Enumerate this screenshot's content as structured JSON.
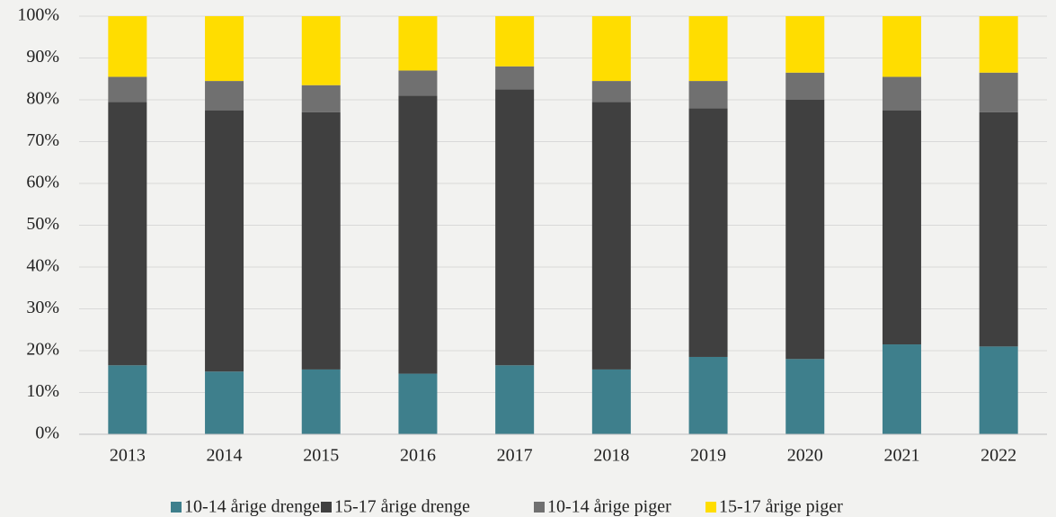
{
  "chart_data": {
    "type": "stacked_bar",
    "categories": [
      "2013",
      "2014",
      "2015",
      "2016",
      "2017",
      "2018",
      "2019",
      "2020",
      "2021",
      "2022"
    ],
    "series": [
      {
        "name": "10-14 årige drenge",
        "color": "#3e7f8c",
        "values": [
          16.5,
          15,
          15.5,
          14.5,
          16.5,
          15.5,
          18.5,
          18,
          21.5,
          21
        ]
      },
      {
        "name": "15-17 årige drenge",
        "color": "#404040",
        "values": [
          63,
          62.5,
          61.5,
          66.5,
          66,
          64,
          59.5,
          62,
          56,
          56
        ]
      },
      {
        "name": "10-14 årige piger",
        "color": "#707070",
        "values": [
          6,
          7,
          6.5,
          6,
          5.5,
          5,
          6.5,
          6.5,
          8,
          9.5
        ]
      },
      {
        "name": "15-17 årige piger",
        "color": "#ffdd00",
        "values": [
          14.5,
          15.5,
          16.5,
          13,
          12,
          15.5,
          15.5,
          13.5,
          14.5,
          13.5
        ]
      }
    ],
    "ylim": [
      0,
      100
    ],
    "yticks": [
      {
        "value": 0,
        "label": "0%"
      },
      {
        "value": 10,
        "label": "10%"
      },
      {
        "value": 20,
        "label": "20%"
      },
      {
        "value": 30,
        "label": "30%"
      },
      {
        "value": 40,
        "label": "40%"
      },
      {
        "value": 50,
        "label": "50%"
      },
      {
        "value": 60,
        "label": "60%"
      },
      {
        "value": 70,
        "label": "70%"
      },
      {
        "value": 80,
        "label": "80%"
      },
      {
        "value": 90,
        "label": "90%"
      },
      {
        "value": 100,
        "label": "100%"
      }
    ],
    "grid": true,
    "legend": "bottom"
  }
}
